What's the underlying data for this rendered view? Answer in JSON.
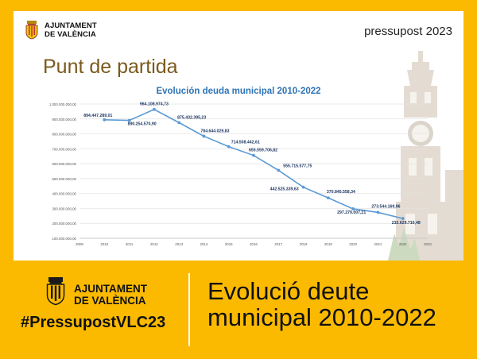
{
  "slide": {
    "logo_line1": "AJUNTAMENT",
    "logo_line2": "DE VALÈNCIA",
    "year_label": "pressupost 2023",
    "heading": "Punt de partida"
  },
  "chart_data": {
    "type": "line",
    "title": "Evolución deuda municipal 2010-2022",
    "xlabel": "",
    "ylabel": "",
    "x_ticks": [
      "2009",
      "2010",
      "2011",
      "2012",
      "2013",
      "2014",
      "2015",
      "2016",
      "2017",
      "2018",
      "2019",
      "2020",
      "2021",
      "2022",
      "2023"
    ],
    "xlim": [
      2009,
      2023
    ],
    "y_ticks": [
      "100.000.000,00",
      "200.000.000,00",
      "300.000.000,00",
      "400.000.000,00",
      "500.000.000,00",
      "600.000.000,00",
      "700.000.000,00",
      "800.000.000,00",
      "900.000.000,00",
      "1.000.000.000,00"
    ],
    "ylim": [
      100000000,
      1000000000
    ],
    "grid": "horizontal",
    "color": "#5b9bd5",
    "series": [
      {
        "x": [
          2010,
          2011,
          2012,
          2013,
          2014,
          2015,
          2016,
          2017,
          2018,
          2019,
          2020,
          2021,
          2022
        ],
        "values": [
          894447289.01,
          890254570.9,
          964108974.73,
          875432395.23,
          784644029.83,
          714508442.61,
          655559706.82,
          555715577.75,
          442525339.63,
          370845558.34,
          297279007.21,
          273544169.96,
          232629710.48
        ],
        "labels": [
          "894.447.289,01",
          "890.254.570,90",
          "964.108.974,73",
          "875.432.395,23",
          "784.644.029,83",
          "714.508.442,61",
          "655.559.706,82",
          "555.715.577,75",
          "442.525.339,63",
          "370.845.558,34",
          "297.279.007,21",
          "273.544.169,96",
          "232.629.710,48"
        ]
      }
    ]
  },
  "bottom": {
    "logo_line1": "AJUNTAMENT",
    "logo_line2": "DE VALÈNCIA",
    "hashtag": "#PressupostVLC23",
    "title_line1": "Evolució deute",
    "title_line2": "municipal 2010-2022"
  }
}
